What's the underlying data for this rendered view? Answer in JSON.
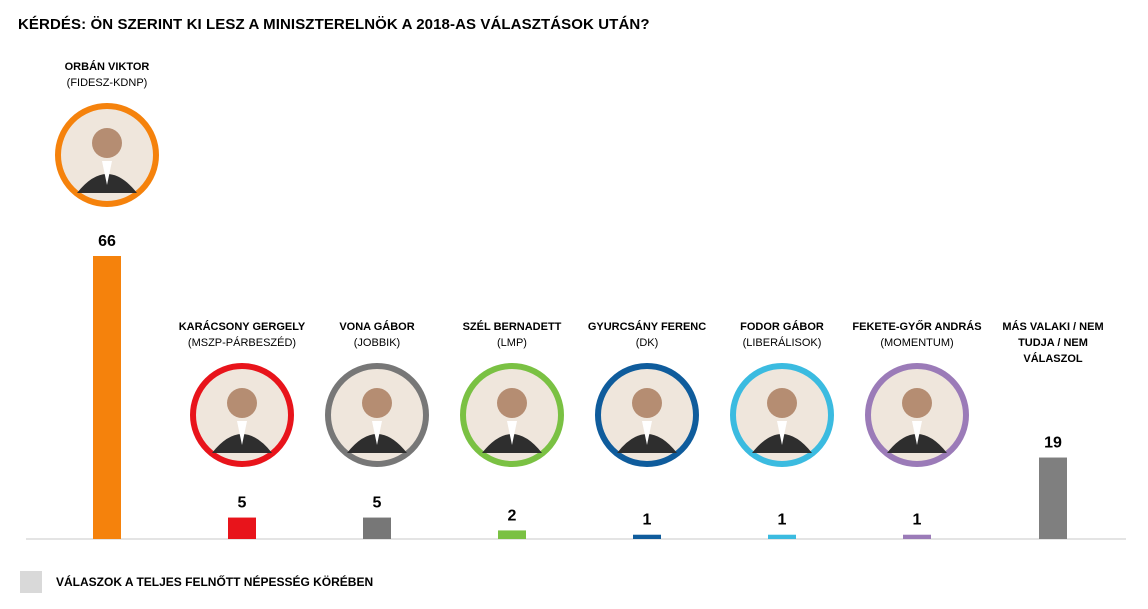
{
  "title": "KÉRDÉS: ÖN SZERINT KI LESZ A MINISZTERELNÖK A 2018-AS VÁLASZTÁSOK UTÁN?",
  "legend": {
    "text": "VÁLASZOK A TELJES FELNŐTT NÉPESSÉG KÖRÉBEN",
    "swatch_color": "#d9d9d9"
  },
  "chart_data": {
    "type": "bar",
    "title": "KÉRDÉS: ÖN SZERINT KI LESZ A MINISZTERELNÖK A 2018-AS VÁLASZTÁSOK UTÁN?",
    "categories": [
      "ORBÁN VIKTOR",
      "KARÁCSONY GERGELY",
      "VONA GÁBOR",
      "SZÉL BERNADETT",
      "GYURCSÁNY FERENC",
      "FODOR GÁBOR",
      "FEKETE-GYŐR  ANDRÁS",
      "MÁS VALAKI / NEM TUDJA / NEM VÁLASZOL"
    ],
    "category_lines": [
      [
        "ORBÁN VIKTOR"
      ],
      [
        "KARÁCSONY GERGELY"
      ],
      [
        "VONA GÁBOR"
      ],
      [
        "SZÉL BERNADETT"
      ],
      [
        "GYURCSÁNY FERENC"
      ],
      [
        "FODOR GÁBOR"
      ],
      [
        "FEKETE-GYŐR  ANDRÁS"
      ],
      [
        "MÁS VALAKI / NEM",
        "TUDJA / NEM",
        "VÁLASZOL"
      ]
    ],
    "parties": [
      "(FIDESZ-KDNP)",
      "(MSZP-PÁRBESZÉD)",
      "(JOBBIK)",
      "(LMP)",
      "(DK)",
      "(LIBERÁLISOK)",
      "(MOMENTUM)",
      ""
    ],
    "values": [
      66,
      5,
      5,
      2,
      1,
      1,
      1,
      19
    ],
    "colors": [
      "#f5820c",
      "#e8141b",
      "#777777",
      "#7ac143",
      "#0f5c9c",
      "#3bbbe0",
      "#9b7bb8",
      "#7f7f7f"
    ],
    "portrait_icons": [
      "portrait-icon",
      "portrait-icon",
      "portrait-icon",
      "portrait-icon",
      "portrait-icon",
      "portrait-icon",
      "portrait-icon",
      ""
    ],
    "ylim": [
      0,
      66
    ],
    "grid": false,
    "legend_position": "bottom-left"
  }
}
